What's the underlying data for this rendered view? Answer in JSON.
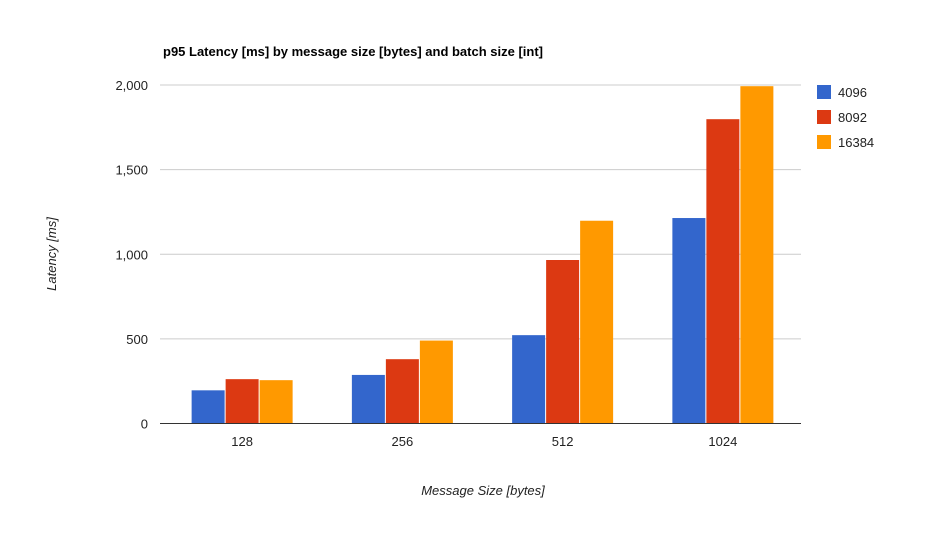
{
  "chart_data": {
    "type": "bar",
    "title": "p95 Latency [ms] by message size [bytes] and batch size [int]",
    "xlabel": "Message Size [bytes]",
    "ylabel": "Latency [ms]",
    "categories": [
      "128",
      "256",
      "512",
      "1024"
    ],
    "ylim": [
      0,
      2000
    ],
    "yticks": [
      0,
      500,
      1000,
      1500,
      2000
    ],
    "ytick_labels": [
      "0",
      "500",
      "1,000",
      "1,500",
      "2,000"
    ],
    "grid": true,
    "legend_position": "right",
    "series": [
      {
        "name": "4096",
        "color": "#3366cc",
        "values": [
          196,
          287,
          522,
          1214
        ]
      },
      {
        "name": "8092",
        "color": "#dc3912",
        "values": [
          262,
          380,
          966,
          1798
        ]
      },
      {
        "name": "16384",
        "color": "#ff9900",
        "values": [
          256,
          490,
          1198,
          1993
        ]
      }
    ]
  }
}
